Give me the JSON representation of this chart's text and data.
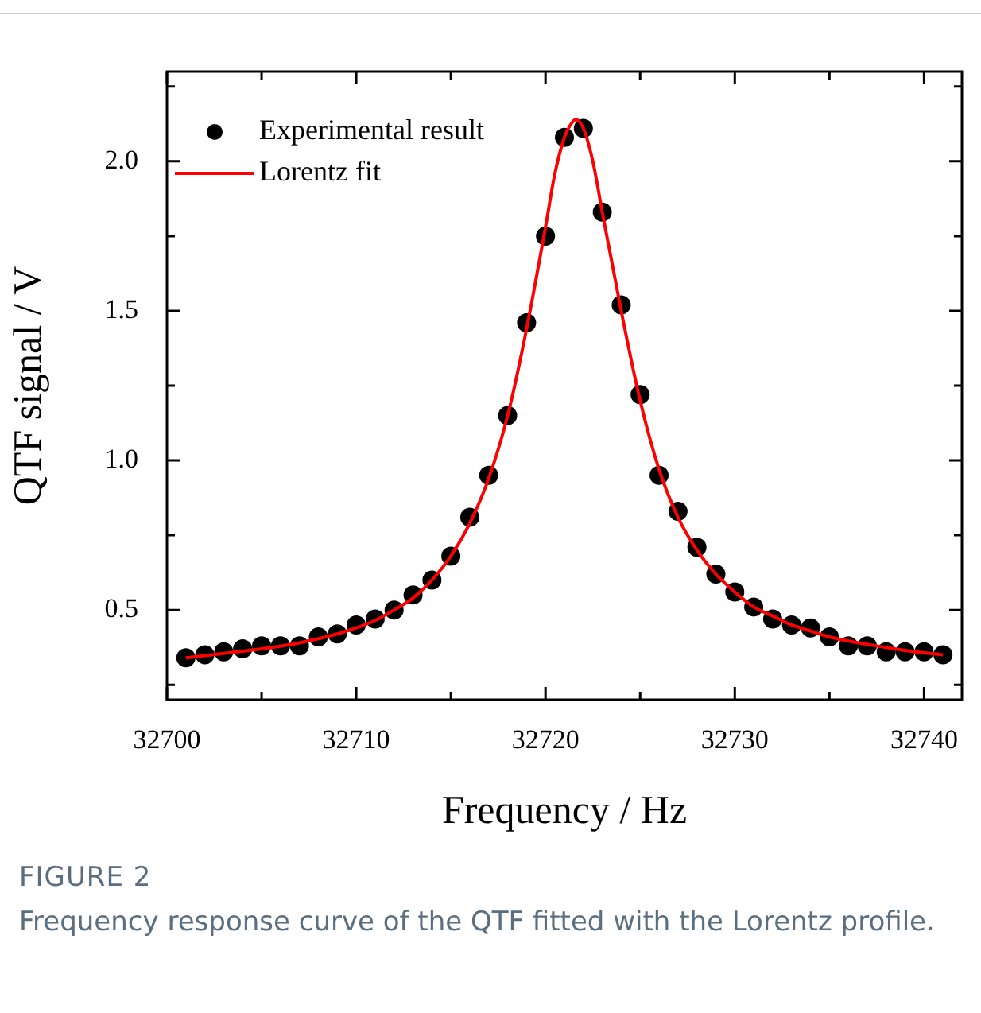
{
  "chart_data": {
    "type": "scatter",
    "xlabel": "Frequency / Hz",
    "ylabel": "QTF signal / V",
    "xlim": [
      32700,
      32742
    ],
    "ylim": [
      0.2,
      2.3
    ],
    "xticks": [
      32700,
      {
        "value": 32705,
        "label": null
      },
      32710,
      {
        "value": 32715,
        "label": null
      },
      32720,
      {
        "value": 32725,
        "label": null
      },
      32730,
      {
        "value": 32735,
        "label": null
      },
      32740
    ],
    "yticks": [
      {
        "value": 0.25,
        "label": null
      },
      {
        "value": 0.5,
        "label": "0.5"
      },
      {
        "value": 0.75,
        "label": null
      },
      {
        "value": 1,
        "label": "1.0"
      },
      {
        "value": 1.25,
        "label": null
      },
      {
        "value": 1.5,
        "label": "1.5"
      },
      {
        "value": 1.75,
        "label": null
      },
      {
        "value": 2,
        "label": "2.0"
      },
      {
        "value": 2.25,
        "label": null
      }
    ],
    "legend": "top left",
    "series": [
      {
        "name": "Experimental result",
        "type": "scatter",
        "marker": "circle",
        "color": "#000000",
        "x": [
          32701,
          32702,
          32703,
          32704,
          32705,
          32706,
          32707,
          32708,
          32709,
          32710,
          32711,
          32712,
          32713,
          32714,
          32715,
          32716,
          32717,
          32718,
          32719,
          32720,
          32721,
          32722,
          32723,
          32724,
          32725,
          32726,
          32727,
          32728,
          32729,
          32730,
          32731,
          32732,
          32733,
          32734,
          32735,
          32736,
          32737,
          32738,
          32739,
          32740,
          32741
        ],
        "values": [
          0.34,
          0.35,
          0.36,
          0.37,
          0.38,
          0.38,
          0.38,
          0.41,
          0.42,
          0.45,
          0.47,
          0.5,
          0.55,
          0.6,
          0.68,
          0.81,
          0.95,
          1.15,
          1.46,
          1.75,
          2.08,
          2.11,
          1.83,
          1.52,
          1.22,
          0.95,
          0.83,
          0.71,
          0.62,
          0.56,
          0.51,
          0.47,
          0.45,
          0.44,
          0.41,
          0.38,
          0.38,
          0.36,
          0.36,
          0.36,
          0.35
        ]
      },
      {
        "name": "Lorentz fit",
        "type": "line",
        "marker": "none",
        "color": "#ff0000",
        "x": [
          32701,
          32703,
          32705,
          32707,
          32709,
          32710,
          32711,
          32712,
          32713,
          32714,
          32715,
          32716,
          32717,
          32718,
          32719,
          32720,
          32720.5,
          32721,
          32721.3,
          32721.6,
          32722,
          32722.5,
          32723,
          32724,
          32725,
          32726,
          32727,
          32728,
          32729,
          32730,
          32731,
          32732,
          32733,
          32734,
          32735,
          32737,
          32739,
          32741
        ],
        "values": [
          0.34,
          0.355,
          0.37,
          0.39,
          0.42,
          0.44,
          0.465,
          0.5,
          0.54,
          0.6,
          0.68,
          0.79,
          0.94,
          1.15,
          1.44,
          1.78,
          1.96,
          2.08,
          2.12,
          2.14,
          2.11,
          2.0,
          1.83,
          1.5,
          1.2,
          0.97,
          0.81,
          0.7,
          0.62,
          0.56,
          0.51,
          0.48,
          0.45,
          0.43,
          0.41,
          0.385,
          0.365,
          0.35
        ]
      }
    ],
    "annotations": [
      "FIGURE 2",
      "Frequency response curve of the QTF fitted with the Lorentz profile."
    ]
  }
}
